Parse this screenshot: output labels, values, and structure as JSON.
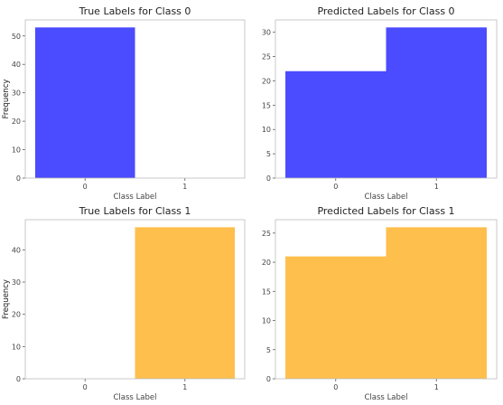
{
  "chart_data": [
    {
      "type": "bar",
      "title": "True Labels for Class 0",
      "xlabel": "Class Label",
      "ylabel": "Frequency",
      "categories": [
        "0",
        "1"
      ],
      "values": [
        53,
        0
      ],
      "color": "#4b4bff",
      "yticks": [
        0,
        10,
        20,
        30,
        40,
        50
      ],
      "ylim": [
        0,
        55.65
      ],
      "grid": false
    },
    {
      "type": "bar",
      "title": "Predicted Labels for Class 0",
      "xlabel": "Class Label",
      "ylabel": "Frequency",
      "categories": [
        "0",
        "1"
      ],
      "values": [
        22,
        31
      ],
      "color": "#4b4bff",
      "yticks": [
        0,
        5,
        10,
        15,
        20,
        25,
        30
      ],
      "ylim": [
        0,
        32.55
      ],
      "grid": false
    },
    {
      "type": "bar",
      "title": "True Labels for Class 1",
      "xlabel": "Class Label",
      "ylabel": "Frequency",
      "categories": [
        "0",
        "1"
      ],
      "values": [
        0,
        47
      ],
      "color": "#ffbf4d",
      "yticks": [
        0,
        10,
        20,
        30,
        40
      ],
      "ylim": [
        0,
        49.35
      ],
      "grid": false
    },
    {
      "type": "bar",
      "title": "Predicted Labels for Class 1",
      "xlabel": "Class Label",
      "ylabel": "Frequency",
      "categories": [
        "0",
        "1"
      ],
      "values": [
        21,
        26
      ],
      "color": "#ffbf4d",
      "yticks": [
        0,
        5,
        10,
        15,
        20,
        25
      ],
      "ylim": [
        0,
        27.3
      ],
      "grid": false
    }
  ]
}
